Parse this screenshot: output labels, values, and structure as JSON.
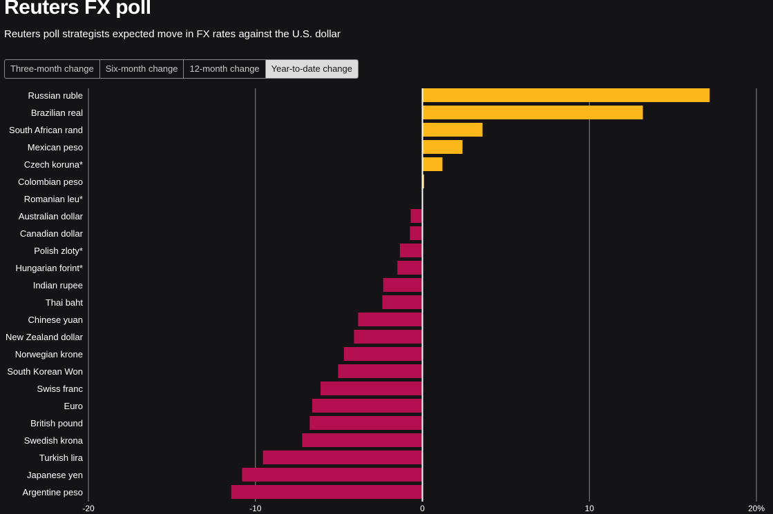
{
  "header": {
    "title": "Reuters FX poll",
    "subtitle": "Reuters poll strategists expected move in FX rates against the U.S. dollar"
  },
  "tabs": [
    {
      "label": "Three-month change",
      "active": false
    },
    {
      "label": "Six-month change",
      "active": false
    },
    {
      "label": "12-month change",
      "active": false
    },
    {
      "label": "Year-to-date change",
      "active": true
    }
  ],
  "colors": {
    "positive": "#fdb71a",
    "negative": "#b4104f",
    "zero_line": "#ffffff",
    "grid": "#8c8c8c",
    "background": "#141416"
  },
  "chart_data": {
    "type": "bar",
    "orientation": "horizontal",
    "title": "Reuters FX poll",
    "xlabel": "",
    "ylabel": "",
    "xlim": [
      -20,
      20
    ],
    "ticks": [
      {
        "value": -20,
        "label": "-20"
      },
      {
        "value": -10,
        "label": "-10"
      },
      {
        "value": 0,
        "label": "0"
      },
      {
        "value": 10,
        "label": "10"
      },
      {
        "value": 20,
        "label": "20%"
      }
    ],
    "grid": true,
    "categories": [
      "Russian ruble",
      "Brazilian real",
      "South African rand",
      "Mexican peso",
      "Czech koruna*",
      "Colombian peso",
      "Romanian leu*",
      "Australian dollar",
      "Canadian dollar",
      "Polish zloty*",
      "Hungarian forint*",
      "Indian rupee",
      "Thai baht",
      "Chinese yuan",
      "New Zealand dollar",
      "Norwegian krone",
      "South Korean Won",
      "Swiss franc",
      "Euro",
      "British pound",
      "Swedish krona",
      "Turkish lira",
      "Japanese yen",
      "Argentine peso"
    ],
    "values": [
      17.2,
      13.2,
      3.6,
      2.4,
      1.2,
      0.1,
      0.0,
      -0.7,
      -0.75,
      -1.35,
      -1.5,
      -2.35,
      -2.4,
      -3.85,
      -4.1,
      -4.7,
      -5.05,
      -6.1,
      -6.6,
      -6.75,
      -7.2,
      -9.55,
      -10.8,
      -11.45
    ]
  }
}
